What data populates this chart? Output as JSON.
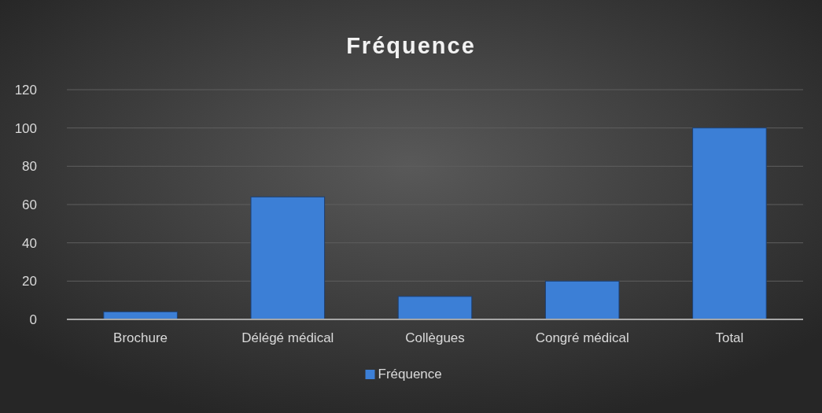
{
  "chart_data": {
    "type": "bar",
    "title": "Fréquence",
    "categories": [
      "Brochure",
      "Délégé médical",
      "Collègues",
      "Congré médical",
      "Total"
    ],
    "series": [
      {
        "name": "Fréquence",
        "color": "#3c7fd6",
        "values": [
          4,
          64,
          12,
          20,
          100
        ]
      }
    ],
    "ylim": [
      0,
      120
    ],
    "yticks": [
      0,
      20,
      40,
      60,
      80,
      100,
      120
    ],
    "grid": "y",
    "legend": "bottom"
  }
}
